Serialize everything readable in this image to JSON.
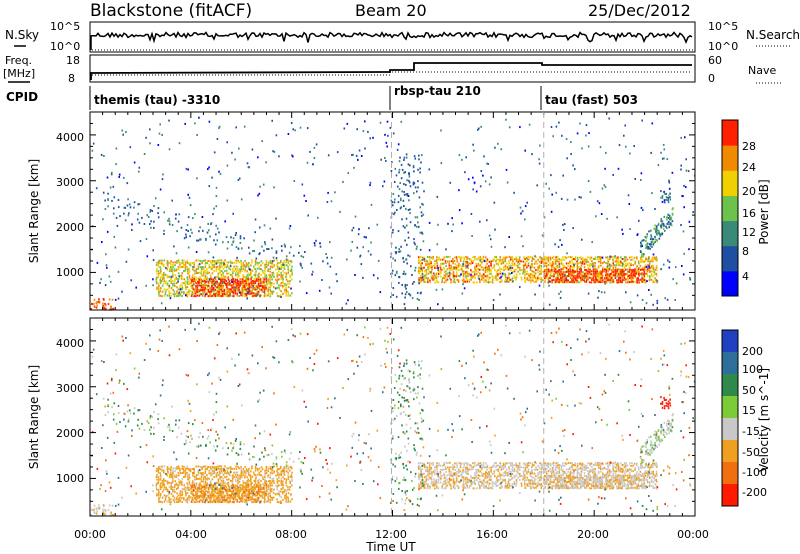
{
  "header": {
    "site": "Blackstone (fitACF)",
    "beam": "Beam 20",
    "date": "25/Dec/2012"
  },
  "strip_panels": {
    "nsky": {
      "label": "N.Sky",
      "ticks": [
        "10^5",
        "10^0"
      ]
    },
    "nsearch": {
      "label": "N.Search",
      "ticks": [
        "10^5",
        "10^0"
      ]
    },
    "freq": {
      "label": "Freq.",
      "unit": "[MHz]",
      "ticks": [
        "18",
        "8"
      ]
    },
    "nave": {
      "label": "Nave",
      "ticks": [
        "60",
        "0"
      ]
    },
    "cpid": {
      "label": "CPID"
    }
  },
  "cpid_segments": [
    {
      "label": "themis (tau) -3310",
      "start_hour": 0
    },
    {
      "label": "rbsp-tau 210",
      "start_hour": 12
    },
    {
      "label": "tau (fast) 503",
      "start_hour": 18
    }
  ],
  "axes": {
    "xlabel": "Time UT",
    "xticks": [
      "00:00",
      "04:00",
      "08:00",
      "12:00",
      "16:00",
      "20:00",
      "00:00"
    ],
    "ylabel": "Slant Range [km]",
    "yticks": [
      "1000",
      "2000",
      "3000",
      "4000"
    ]
  },
  "power_colorbar": {
    "label": "Power [dB]",
    "ticks": [
      "4",
      "8",
      "12",
      "16",
      "20",
      "24",
      "28"
    ],
    "colors": [
      "#0000ff",
      "#1f4fa0",
      "#3a8a7a",
      "#6cc24a",
      "#f0d000",
      "#f08a00",
      "#ff2000"
    ]
  },
  "velocity_colorbar": {
    "label": "Velocity [m s^-1]",
    "ticks": [
      "200",
      "100",
      "50",
      "15",
      "-15",
      "-50",
      "-100",
      "-200"
    ],
    "colors": [
      "#2040c0",
      "#2e6e9a",
      "#2e8a4a",
      "#7ccc3a",
      "#c8c8c8",
      "#f0a020",
      "#f07010",
      "#ff1a00"
    ]
  },
  "chart_data": {
    "type": "heatmap",
    "title": "Blackstone (fitACF)",
    "xlabel": "Time UT",
    "ylabel": "Slant Range [km]",
    "xlim_hours": [
      0,
      24
    ],
    "ylim_km": [
      180,
      4500
    ],
    "series": [
      {
        "name": "Power [dB]"
      },
      {
        "name": "Velocity [m s^-1]"
      }
    ],
    "echo_regions": [
      {
        "t_start": 2.6,
        "t_end": 8.0,
        "r_min": 500,
        "r_max": 1300,
        "power_db": 20,
        "velocity": -30
      },
      {
        "t_start": 4.0,
        "t_end": 7.0,
        "r_min": 500,
        "r_max": 900,
        "power_db": 28,
        "velocity": -40
      },
      {
        "t_start": 13.0,
        "t_end": 22.5,
        "r_min": 800,
        "r_max": 1400,
        "power_db": 22,
        "velocity": -10
      },
      {
        "t_start": 18.0,
        "t_end": 22.0,
        "r_min": 800,
        "r_max": 1100,
        "power_db": 28,
        "velocity": -10
      },
      {
        "t_start": 22.6,
        "t_end": 23.0,
        "r_min": 2550,
        "r_max": 2800,
        "power_db": 10,
        "velocity": -150
      }
    ]
  }
}
